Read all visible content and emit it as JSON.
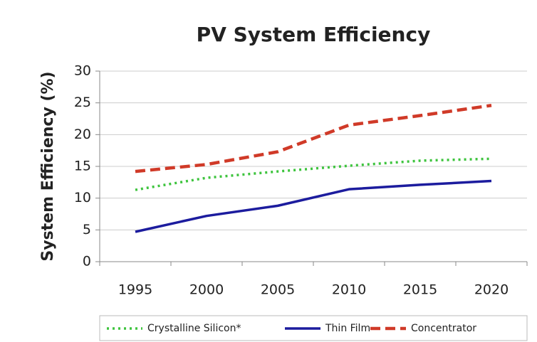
{
  "chart_data": {
    "type": "line",
    "title": "PV System Efficiency",
    "y_label": "System Efficiency (%)",
    "categories": [
      "1995",
      "2000",
      "2005",
      "2010",
      "2015",
      "2020"
    ],
    "series": [
      {
        "name": "Crystalline Silicon*",
        "color": "#3ec43e",
        "dash": "dotted",
        "values": [
          11.3,
          13.2,
          14.2,
          15.1,
          15.9,
          16.2
        ]
      },
      {
        "name": "Thin Film",
        "color": "#1c1c9e",
        "dash": "solid",
        "values": [
          4.7,
          7.2,
          8.8,
          11.4,
          12.1,
          12.7
        ]
      },
      {
        "name": "Concentrator",
        "color": "#d03a28",
        "dash": "dashed",
        "values": [
          14.2,
          15.3,
          17.3,
          21.5,
          23.0,
          24.6
        ]
      }
    ],
    "ylim": [
      0,
      30
    ],
    "yticks": [
      0,
      5,
      10,
      15,
      20,
      25,
      30
    ],
    "grid": true,
    "legend": "bottom"
  }
}
